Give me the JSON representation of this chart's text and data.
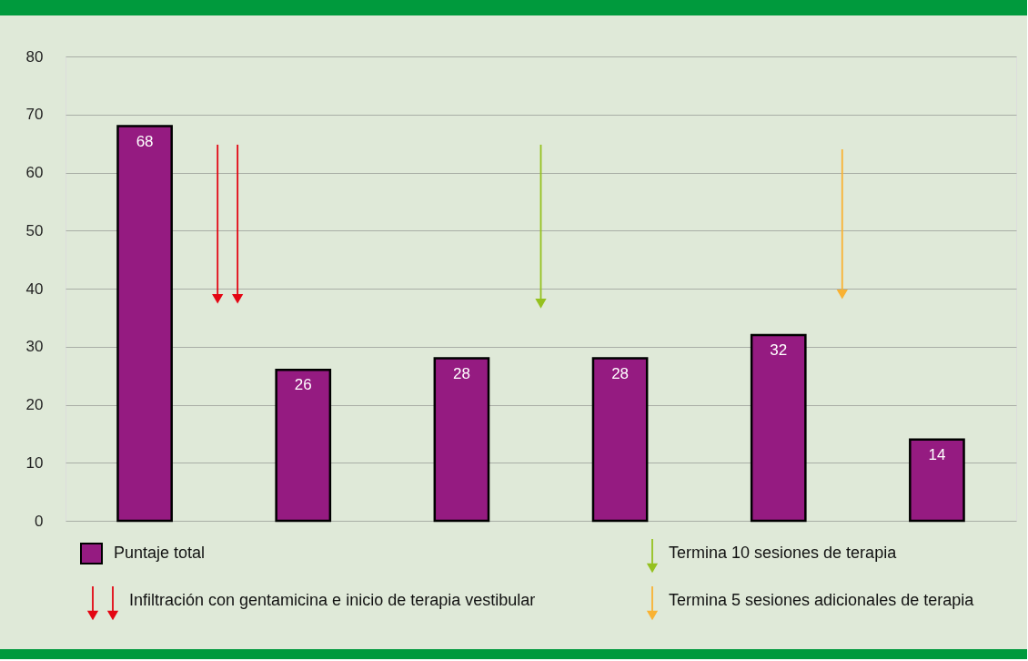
{
  "chart_data": {
    "type": "bar",
    "categories": [
      null,
      null,
      null,
      null,
      null,
      null
    ],
    "series": [
      {
        "name": "Puntaje total",
        "color": "#951b81",
        "values": [
          68,
          26,
          28,
          28,
          32,
          14
        ]
      }
    ],
    "ylim": [
      0,
      80
    ],
    "yticks": [
      0,
      10,
      20,
      30,
      40,
      50,
      60,
      70,
      80
    ],
    "grid": "y",
    "tick_labels": "y",
    "data_labels": true,
    "legend": "bottom",
    "annotations": [
      "Infiltración con gentamicina e inicio de terapia vestibular",
      "Termina 10 sesiones de terapia",
      "Termina 5 sesiones adicionales de terapia"
    ]
  }
}
